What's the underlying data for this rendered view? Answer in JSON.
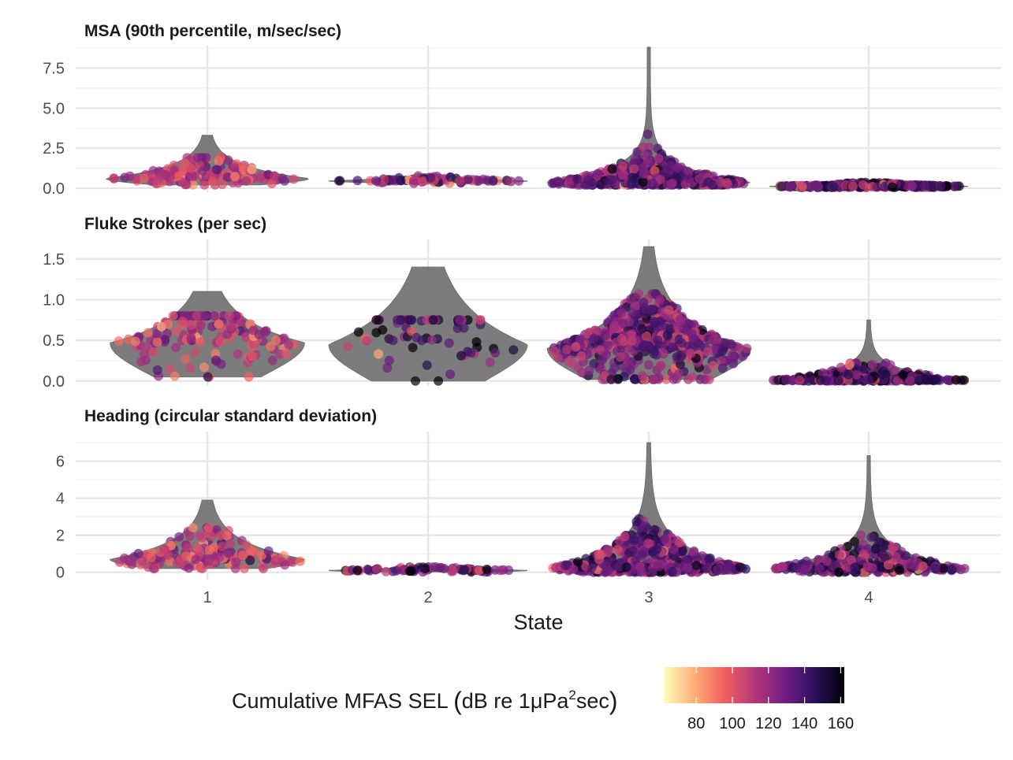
{
  "chart_data": {
    "type": "scatter",
    "subtype": "violin with jittered points, faceted",
    "x_axis": {
      "label": "State",
      "categories": [
        "1",
        "2",
        "3",
        "4"
      ]
    },
    "color_scale": {
      "label_parts": {
        "pre": "Cumulative MFAS SEL ",
        "open": "(",
        "mid1": "dB re 1",
        "mu": "μ",
        "mid2": "Pa",
        "sup": "2",
        "post": "sec",
        "close": ")"
      },
      "palette": "magma",
      "range": [
        62,
        162
      ],
      "ticks": [
        "80",
        "100",
        "120",
        "140",
        "160"
      ],
      "tick_values": [
        80,
        100,
        120,
        140,
        160
      ],
      "colors": [
        "#fcfdbf",
        "#feb078",
        "#f1605d",
        "#b73779",
        "#721f81",
        "#2c115f",
        "#000004"
      ]
    },
    "gridlines": true,
    "violin_color": "#6e6e6e",
    "panels": [
      {
        "title": "MSA (90th percentile, m/sec/sec)",
        "ylim": [
          -0.3,
          8.9
        ],
        "y_ticks": [
          "0.0",
          "2.5",
          "5.0",
          "7.5"
        ],
        "y_tick_values": [
          0,
          2.5,
          5,
          7.5
        ],
        "y_minor": [
          1.25,
          3.75,
          6.25,
          8.75
        ],
        "states": [
          {
            "state": "1",
            "width": 0.92,
            "ymin": 0.2,
            "ymax": 3.3,
            "center": 0.6,
            "spread_low": 0.35,
            "spread_high": 1.3,
            "n": 150,
            "color_mean": 110,
            "color_sd": 15,
            "jitter_max": 1.9
          },
          {
            "state": "2",
            "width": 0.9,
            "ymin": 0.3,
            "ymax": 0.9,
            "center": 0.45,
            "spread_low": 0.1,
            "spread_high": 0.3,
            "n": 80,
            "color_mean": 130,
            "color_sd": 20,
            "jitter_max": 0.8
          },
          {
            "state": "3",
            "width": 0.92,
            "ymin": 0.2,
            "ymax": 8.8,
            "center": 0.35,
            "spread_low": 0.2,
            "spread_high": 1.5,
            "n": 520,
            "color_mean": 130,
            "color_sd": 15,
            "jitter_max": 6.0
          },
          {
            "state": "4",
            "width": 0.9,
            "ymin": 0.05,
            "ymax": 0.5,
            "center": 0.12,
            "spread_low": 0.08,
            "spread_high": 0.2,
            "n": 320,
            "color_mean": 138,
            "color_sd": 20,
            "jitter_max": 0.45
          }
        ]
      },
      {
        "title": "Fluke Strokes (per sec)",
        "ylim": [
          -0.06,
          1.74
        ],
        "y_ticks": [
          "0.0",
          "0.5",
          "1.0",
          "1.5"
        ],
        "y_tick_values": [
          0,
          0.5,
          1.0,
          1.5
        ],
        "y_minor": [
          0.25,
          0.75,
          1.25
        ],
        "states": [
          {
            "state": "1",
            "width": 0.88,
            "ymin": 0.05,
            "ymax": 1.1,
            "center": 0.47,
            "spread_low": 0.38,
            "spread_high": 0.5,
            "n": 150,
            "color_mean": 112,
            "color_sd": 15,
            "jitter_max": 0.8
          },
          {
            "state": "2",
            "width": 0.9,
            "ymin": 0.0,
            "ymax": 1.4,
            "center": 0.45,
            "spread_low": 0.42,
            "spread_high": 0.8,
            "n": 70,
            "color_mean": 135,
            "color_sd": 20,
            "jitter_max": 0.75
          },
          {
            "state": "3",
            "width": 0.92,
            "ymin": 0.02,
            "ymax": 1.65,
            "center": 0.4,
            "spread_low": 0.38,
            "spread_high": 0.6,
            "n": 560,
            "color_mean": 128,
            "color_sd": 15,
            "jitter_max": 1.07
          },
          {
            "state": "4",
            "width": 0.9,
            "ymin": 0.0,
            "ymax": 0.75,
            "center": 0.01,
            "spread_low": 0.01,
            "spread_high": 0.2,
            "n": 280,
            "color_mean": 138,
            "color_sd": 20,
            "jitter_max": 0.22
          }
        ]
      },
      {
        "title": "Heading (circular standard deviation)",
        "ylim": [
          -0.4,
          7.6
        ],
        "y_ticks": [
          "0",
          "2",
          "4",
          "6"
        ],
        "y_tick_values": [
          0,
          2,
          4,
          6
        ],
        "y_minor": [
          1,
          3,
          5,
          7
        ],
        "states": [
          {
            "state": "1",
            "width": 0.88,
            "ymin": 0.2,
            "ymax": 3.9,
            "center": 0.7,
            "spread_low": 0.5,
            "spread_high": 1.6,
            "n": 150,
            "color_mean": 112,
            "color_sd": 15,
            "jitter_max": 2.4
          },
          {
            "state": "2",
            "width": 0.9,
            "ymin": 0.02,
            "ymax": 0.35,
            "center": 0.1,
            "spread_low": 0.08,
            "spread_high": 0.2,
            "n": 80,
            "color_mean": 135,
            "color_sd": 20,
            "jitter_max": 0.3
          },
          {
            "state": "3",
            "width": 0.92,
            "ymin": 0.0,
            "ymax": 7.0,
            "center": 0.2,
            "spread_low": 0.2,
            "spread_high": 1.9,
            "n": 560,
            "color_mean": 130,
            "color_sd": 15,
            "jitter_max": 3.0
          },
          {
            "state": "4",
            "width": 0.9,
            "ymin": 0.0,
            "ymax": 6.3,
            "center": 0.2,
            "spread_low": 0.2,
            "spread_high": 1.4,
            "n": 300,
            "color_mean": 135,
            "color_sd": 18,
            "jitter_max": 2.0
          }
        ]
      }
    ]
  }
}
